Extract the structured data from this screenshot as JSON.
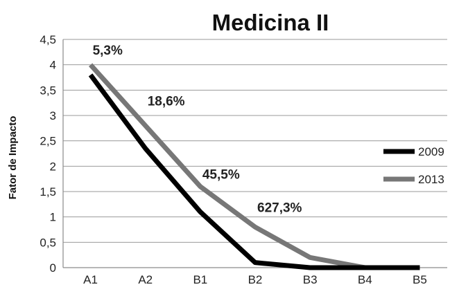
{
  "chart_data": {
    "type": "line",
    "title": "Medicina II",
    "xlabel": "",
    "ylabel": "Fator de Impacto",
    "categories": [
      "A1",
      "A2",
      "B1",
      "B2",
      "B3",
      "B4",
      "B5"
    ],
    "ylim": [
      0,
      4.5
    ],
    "yticks": [
      "0",
      "0,5",
      "1",
      "1,5",
      "2",
      "2,5",
      "3",
      "3,5",
      "4",
      "4,5"
    ],
    "grid": true,
    "legend": "right",
    "series": [
      {
        "name": "2009",
        "color": "#000000",
        "values": [
          3.8,
          2.35,
          1.1,
          0.1,
          0.0,
          0.0,
          0.0
        ]
      },
      {
        "name": "2013",
        "color": "#777777",
        "values": [
          4.0,
          2.8,
          1.6,
          0.8,
          0.2,
          0.0,
          0.0
        ]
      }
    ],
    "annotations": [
      {
        "text": "5,3%",
        "category": "A1",
        "y": 4.2
      },
      {
        "text": "18,6%",
        "category": "A2",
        "y": 3.2
      },
      {
        "text": "45,5%",
        "category": "B1",
        "y": 1.75
      },
      {
        "text": "627,3%",
        "category": "B2",
        "y": 1.1
      }
    ]
  }
}
